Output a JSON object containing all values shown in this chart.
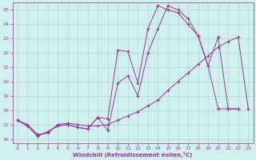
{
  "xlabel": "Windchill (Refroidissement éolien,°C)",
  "bg_color": "#cff0ee",
  "grid_color": "#aad8cc",
  "line_color": "#993399",
  "xlim": [
    -0.5,
    23.5
  ],
  "ylim": [
    15.7,
    25.5
  ],
  "yticks": [
    16,
    17,
    18,
    19,
    20,
    21,
    22,
    23,
    24,
    25
  ],
  "xticks": [
    0,
    1,
    2,
    3,
    4,
    5,
    6,
    7,
    8,
    9,
    10,
    11,
    12,
    13,
    14,
    15,
    16,
    17,
    18,
    19,
    20,
    21,
    22,
    23
  ],
  "line1_x": [
    0,
    1,
    2,
    3,
    4,
    5,
    6,
    7,
    8,
    9,
    10,
    11,
    12,
    13,
    14,
    15,
    16,
    17,
    18,
    19,
    20,
    21,
    22
  ],
  "line1_y": [
    17.3,
    16.9,
    16.2,
    16.5,
    16.9,
    17.0,
    16.8,
    16.7,
    17.5,
    17.4,
    22.2,
    22.1,
    19.9,
    23.7,
    25.3,
    25.0,
    24.8,
    24.0,
    23.2,
    21.1,
    18.1,
    18.1,
    18.1
  ],
  "line2_x": [
    0,
    1,
    2,
    3,
    4,
    5,
    6,
    7,
    8,
    9,
    10,
    11,
    12,
    13,
    14,
    15,
    16,
    17,
    18,
    19,
    20,
    21,
    22
  ],
  "line2_y": [
    17.3,
    16.9,
    16.2,
    16.5,
    16.9,
    17.0,
    16.8,
    16.7,
    17.5,
    16.6,
    19.9,
    20.4,
    19.0,
    22.0,
    23.7,
    25.3,
    25.0,
    24.4,
    23.2,
    21.1,
    23.1,
    18.1,
    18.1
  ],
  "line3_x": [
    0,
    1,
    2,
    3,
    4,
    5,
    6,
    7,
    8,
    9,
    10,
    11,
    12,
    13,
    14,
    15,
    16,
    17,
    18,
    19,
    20,
    21,
    22,
    23
  ],
  "line3_y": [
    17.3,
    17.0,
    16.3,
    16.4,
    17.0,
    17.1,
    17.0,
    16.9,
    16.9,
    17.0,
    17.3,
    17.6,
    17.9,
    18.3,
    18.7,
    19.4,
    20.0,
    20.6,
    21.2,
    21.8,
    22.4,
    22.8,
    23.1,
    18.1
  ]
}
